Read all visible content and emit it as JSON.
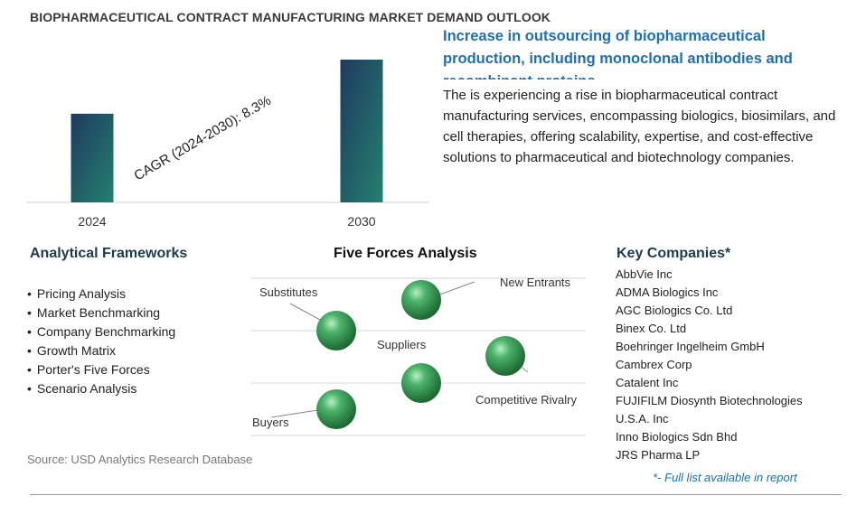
{
  "title": "BIOPHARMACEUTICAL CONTRACT MANUFACTURING MARKET DEMAND OUTLOOK",
  "chart_data": {
    "type": "bar",
    "categories": [
      "2024",
      "2030"
    ],
    "values": [
      1,
      1.61
    ],
    "annotation": "CAGR (2024-2030):  8.3%",
    "title": "",
    "xlabel": "",
    "ylabel": ""
  },
  "headline": "Increase in outsourcing of biopharmaceutical production, including monoclonal antibodies and recombinant proteins",
  "description": "The is experiencing a rise in biopharmaceutical contract manufacturing services, encompassing biologics, biosimilars, and cell therapies, offering scalability, expertise, and cost-effective solutions to pharmaceutical and biotechnology companies.",
  "frameworks": {
    "title": "Analytical Frameworks",
    "items": [
      "Pricing Analysis",
      "Market Benchmarking",
      "Company Benchmarking",
      "Growth Matrix",
      "Porter's Five Forces",
      "Scenario Analysis"
    ]
  },
  "five_forces": {
    "title": "Five Forces Analysis",
    "labels": {
      "substitutes": "Substitutes",
      "new_entrants": "New Entrants",
      "suppliers": "Suppliers",
      "competitive_rivalry": "Competitive Rivalry",
      "buyers": "Buyers"
    }
  },
  "companies": {
    "title": "Key Companies*",
    "items": [
      "AbbVie Inc",
      "ADMA Biologics Inc",
      "AGC Biologics Co. Ltd",
      "Binex Co. Ltd",
      "Boehringer Ingelheim GmbH",
      "Cambrex Corp",
      "Catalent Inc",
      "FUJIFILM Diosynth Biotechnologies U.S.A. Inc",
      "Inno Biologics Sdn Bhd",
      "JRS Pharma LP"
    ],
    "footnote": "*- Full list available in report"
  },
  "source": "Source: USD Analytics Research Database",
  "colors": {
    "bar_top": "#24716a",
    "bar_bottom": "#1f3a5f",
    "sphere": "#3a9a56",
    "headline": "#1f6fb4"
  }
}
